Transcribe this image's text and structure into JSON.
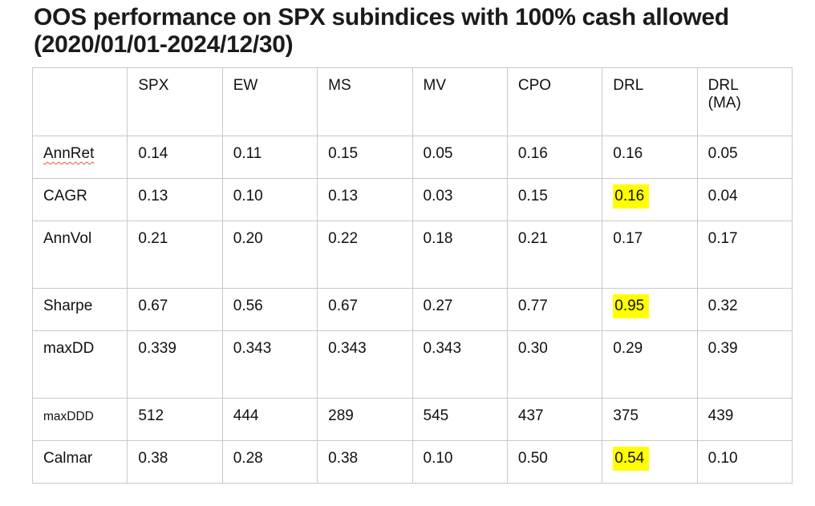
{
  "page": {
    "title": "OOS performance on SPX subindices with 100% cash allowed (2020/01/01-2024/12/30)"
  },
  "table": {
    "columns": [
      "",
      "SPX",
      "EW",
      "MS",
      "MV",
      "CPO",
      "DRL",
      "DRL\n(MA)"
    ],
    "rows": [
      {
        "label": "AnnRet",
        "values": [
          "0.14",
          "0.11",
          "0.15",
          "0.05",
          "0.16",
          "0.16",
          "0.05"
        ]
      },
      {
        "label": "CAGR",
        "values": [
          "0.13",
          "0.10",
          "0.13",
          "0.03",
          "0.15",
          "0.16",
          "0.04"
        ]
      },
      {
        "label": "AnnVol",
        "values": [
          "0.21",
          "0.20",
          "0.22",
          "0.18",
          "0.21",
          "0.17",
          "0.17"
        ]
      },
      {
        "label": "Sharpe",
        "values": [
          "0.67",
          "0.56",
          "0.67",
          "0.27",
          "0.77",
          "0.95",
          "0.32"
        ]
      },
      {
        "label": "maxDD",
        "values": [
          "0.339",
          "0.343",
          "0.343",
          "0.343",
          "0.30",
          "0.29",
          "0.39"
        ]
      },
      {
        "label": "maxDDD",
        "values": [
          "512",
          "444",
          "289",
          "545",
          "437",
          "375",
          "439"
        ]
      },
      {
        "label": "Calmar",
        "values": [
          "0.38",
          "0.28",
          "0.38",
          "0.10",
          "0.50",
          "0.54",
          "0.10"
        ]
      }
    ],
    "highlighted_cells": [
      "CAGR/DRL",
      "Sharpe/DRL",
      "Calmar/DRL"
    ],
    "highlight_color": "#ffff00",
    "border_color": "#c9c9c9",
    "spellcheck_underlined_label": "AnnRet"
  }
}
